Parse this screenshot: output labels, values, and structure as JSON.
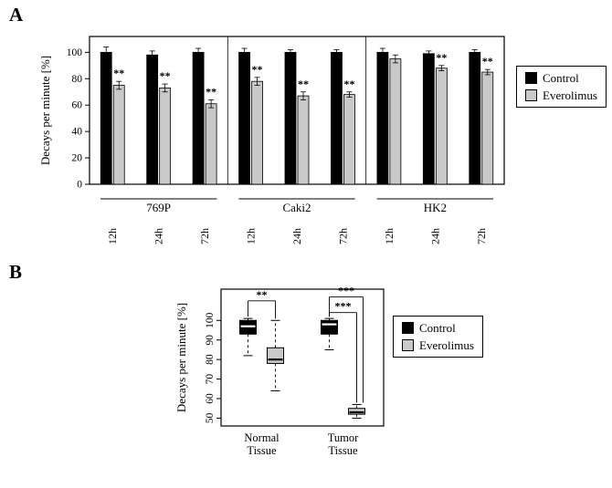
{
  "figure": {
    "panelA_label": "A",
    "panelB_label": "B"
  },
  "legend": {
    "items": [
      {
        "label": "Control",
        "color": "#000000"
      },
      {
        "label": "Everolimus",
        "color": "#c9c9c9"
      }
    ]
  },
  "chart_data": [
    {
      "id": "panelA",
      "type": "bar",
      "ylabel": "Decays per minute [%]",
      "ylim": [
        0,
        112
      ],
      "yticks": [
        0,
        20,
        40,
        60,
        80,
        100
      ],
      "groups": [
        "769P",
        "Caki2",
        "HK2"
      ],
      "timepoints": [
        "12h",
        "24h",
        "72h"
      ],
      "series": [
        {
          "name": "Control",
          "color": "#000000",
          "values": [
            100,
            98,
            100,
            100,
            100,
            100,
            100,
            99,
            100
          ],
          "errors": [
            4,
            3,
            3,
            3,
            2,
            2,
            3,
            2,
            2
          ]
        },
        {
          "name": "Everolimus",
          "color": "#c9c9c9",
          "values": [
            75,
            73,
            61,
            78,
            67,
            68,
            95,
            88,
            85
          ],
          "errors": [
            3,
            3,
            3,
            3,
            3,
            2,
            3,
            2,
            2
          ]
        }
      ],
      "significance": [
        "**",
        "**",
        "**",
        "**",
        "**",
        "**",
        "",
        "**",
        "**"
      ],
      "legend_position": "right",
      "grid": false
    },
    {
      "id": "panelB",
      "type": "boxplot",
      "ylabel": "Decays per minute [%]",
      "ylim": [
        46,
        116
      ],
      "yticks": [
        50,
        60,
        70,
        80,
        90,
        100
      ],
      "categories": [
        [
          "Normal",
          "Tissue"
        ],
        [
          "Tumor",
          "Tissue"
        ]
      ],
      "boxes": [
        {
          "category": "Normal Tissue",
          "series": "Control",
          "cat": 0,
          "slot": 0,
          "color": "#000000",
          "median_color": "#ffffff",
          "whisker_low": 82,
          "q1": 93,
          "median": 97,
          "q3": 100,
          "whisker_high": 101
        },
        {
          "category": "Normal Tissue",
          "series": "Everolimus",
          "cat": 0,
          "slot": 1,
          "color": "#c9c9c9",
          "median_color": "#000000",
          "whisker_low": 64,
          "q1": 78,
          "median": 80,
          "q3": 86,
          "whisker_high": 100
        },
        {
          "category": "Tumor Tissue",
          "series": "Control",
          "cat": 1,
          "slot": 0,
          "color": "#000000",
          "median_color": "#ffffff",
          "whisker_low": 85,
          "q1": 93,
          "median": 98,
          "q3": 100,
          "whisker_high": 101
        },
        {
          "category": "Tumor Tissue",
          "series": "Everolimus",
          "cat": 1,
          "slot": 1,
          "color": "#c9c9c9",
          "median_color": "#000000",
          "whisker_low": 50,
          "q1": 52,
          "median": 53,
          "q3": 55,
          "whisker_high": 57
        }
      ],
      "annotations": [
        {
          "label": "**",
          "from": 0,
          "to": 1,
          "level": 110,
          "to_dx": 0
        },
        {
          "label": "***",
          "from": 2,
          "to": 3,
          "level": 112,
          "to_dx": 7
        },
        {
          "label": "***",
          "from": 2,
          "to": 3,
          "level": 104,
          "to_dx": 0
        }
      ],
      "legend_position": "right",
      "grid": false
    }
  ]
}
